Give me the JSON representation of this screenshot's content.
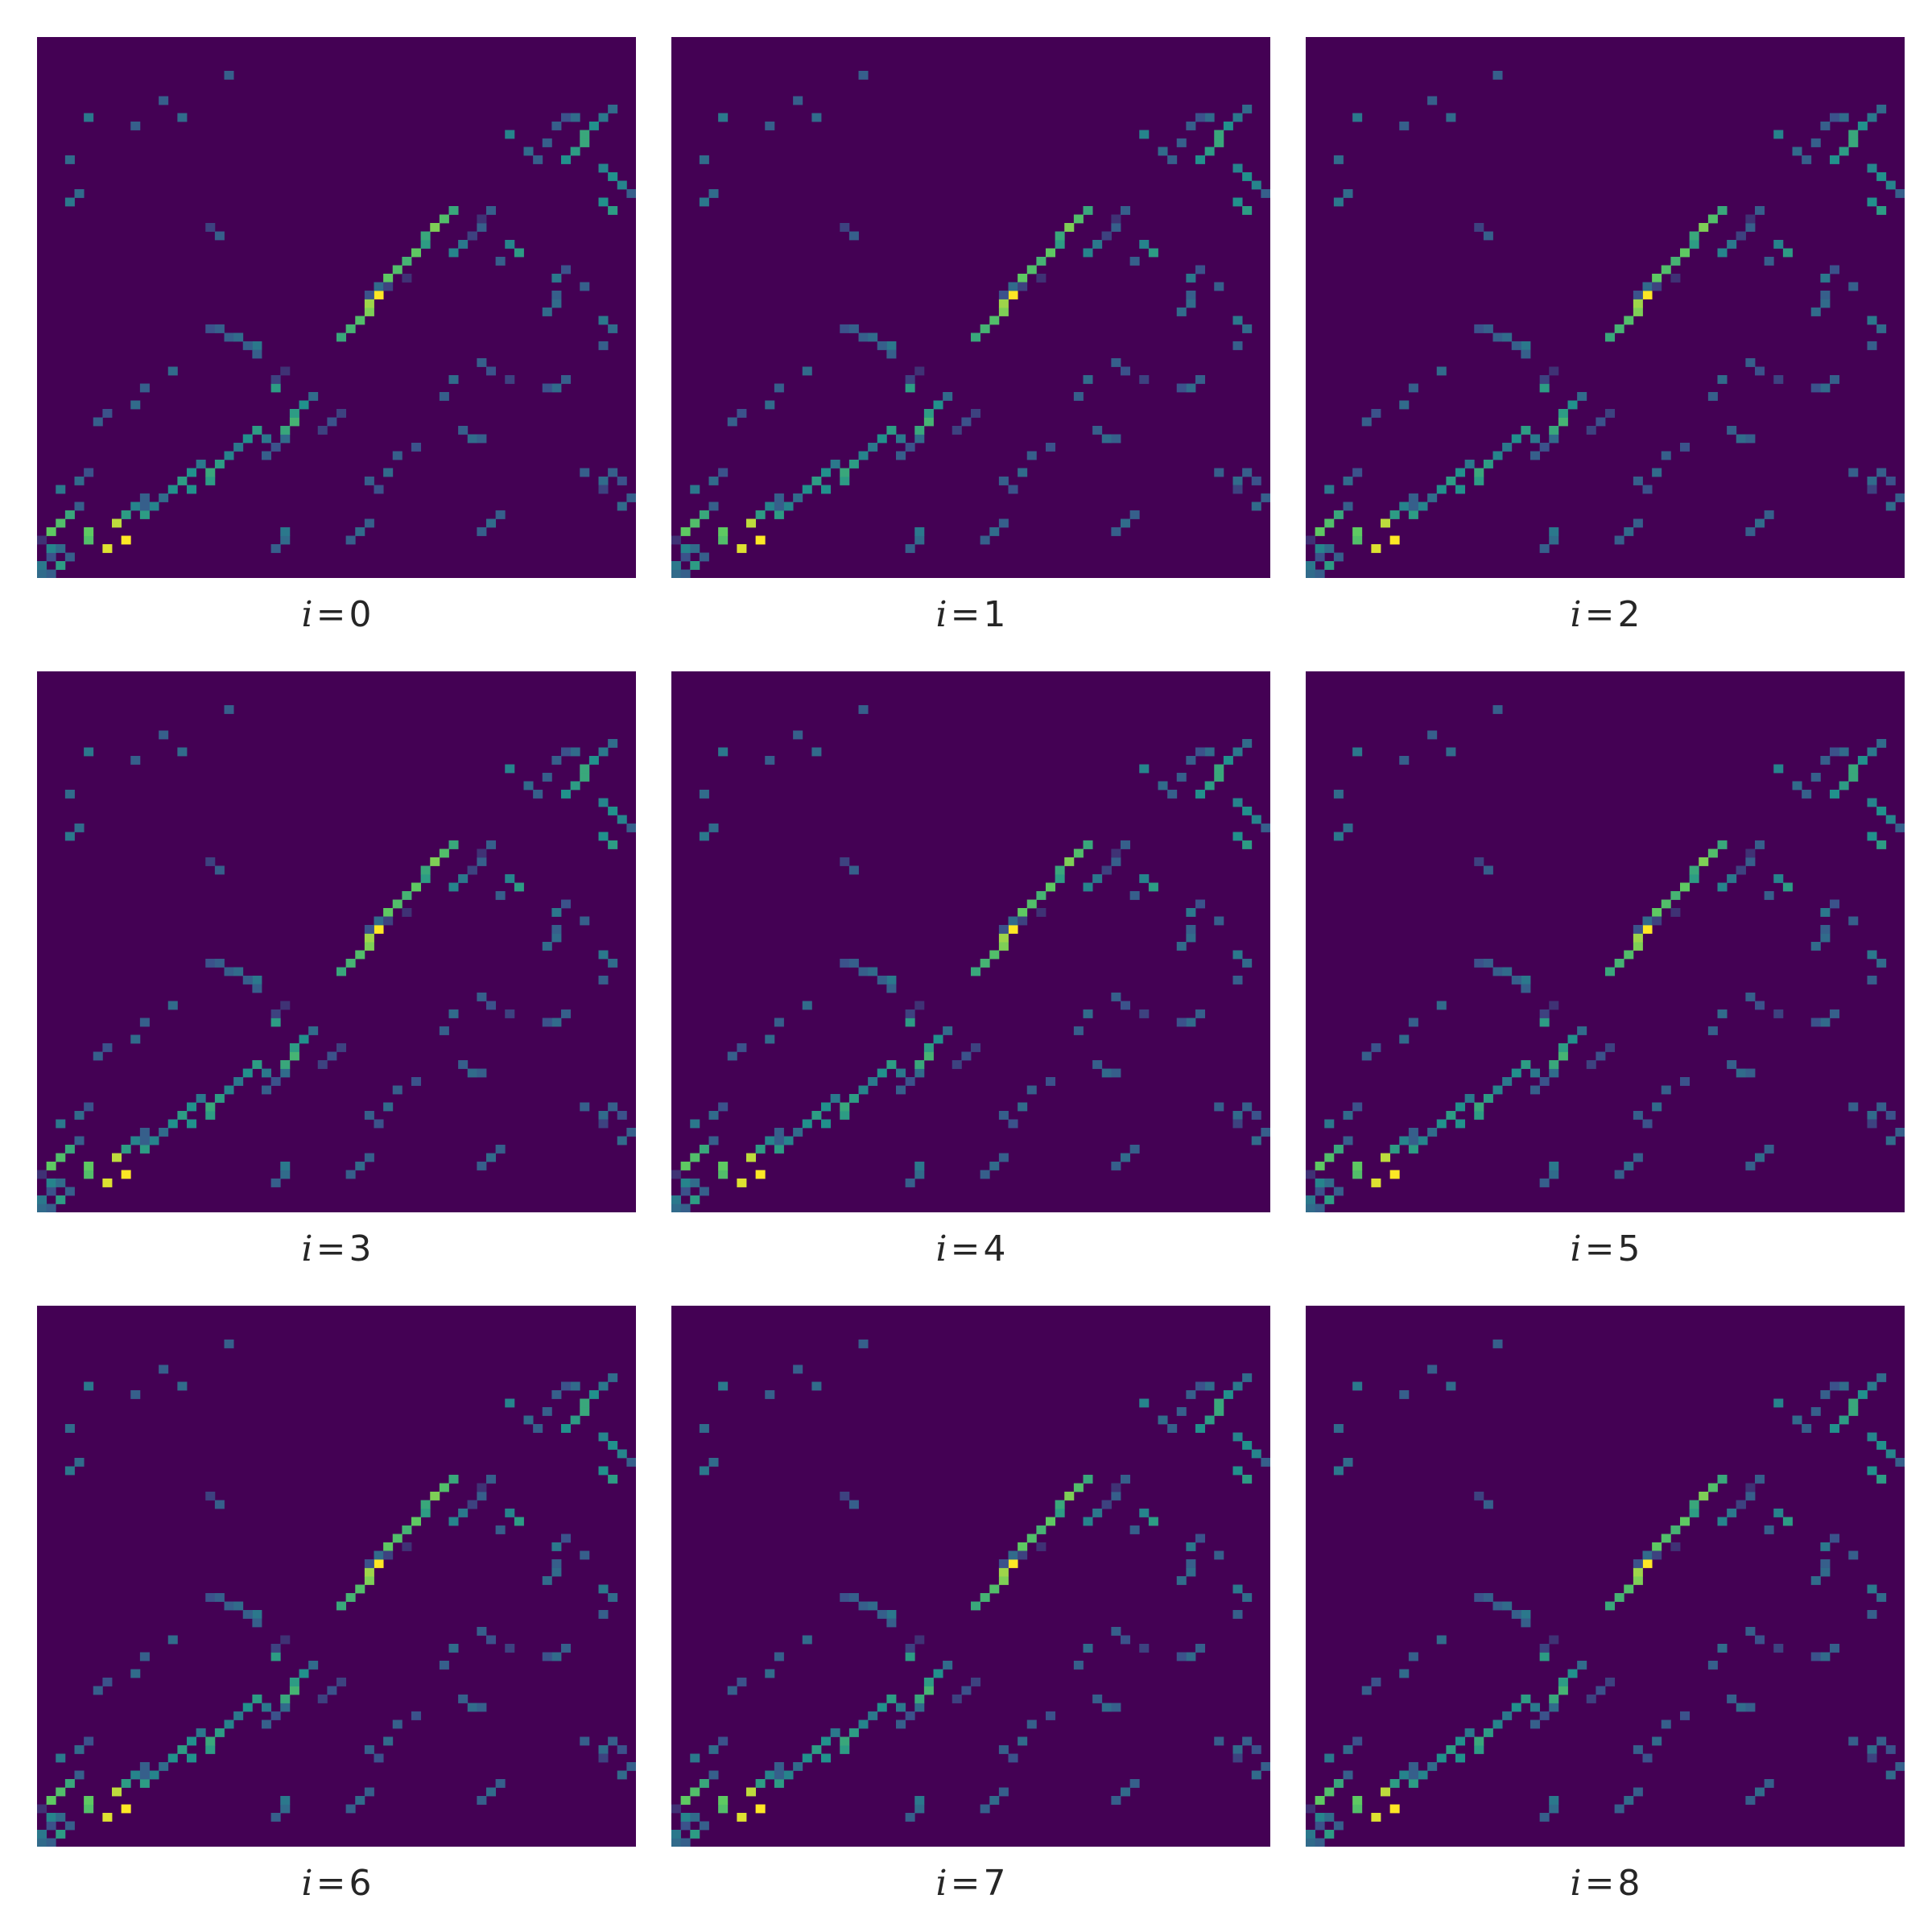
{
  "chart_data": {
    "type": "heatmap",
    "layout": "3x3 grid of heatmap panels",
    "colormap": "viridis",
    "color_range": [
      0,
      1
    ],
    "grid": 64,
    "panels_share_base_pattern": true,
    "caption_variable": "i",
    "caption_equals": "=",
    "panels": [
      {
        "i": "0"
      },
      {
        "i": "1"
      },
      {
        "i": "2"
      },
      {
        "i": "3"
      },
      {
        "i": "4"
      },
      {
        "i": "5"
      },
      {
        "i": "6"
      },
      {
        "i": "7"
      },
      {
        "i": "8"
      }
    ],
    "base_cells": [
      [
        0,
        0,
        0.35
      ],
      [
        0,
        1,
        0.3
      ],
      [
        1,
        0,
        0.4
      ],
      [
        1,
        2,
        0.55
      ],
      [
        2,
        1,
        0.25
      ],
      [
        2,
        3,
        0.3
      ],
      [
        3,
        1,
        0.45
      ],
      [
        3,
        2,
        0.35
      ],
      [
        4,
        0,
        0.15
      ],
      [
        4,
        5,
        0.7
      ],
      [
        5,
        1,
        0.75
      ],
      [
        5,
        5,
        0.75
      ],
      [
        6,
        2,
        0.7
      ],
      [
        6,
        8,
        0.9
      ],
      [
        7,
        3,
        0.6
      ],
      [
        7,
        9,
        0.55
      ],
      [
        8,
        4,
        0.3
      ],
      [
        8,
        10,
        0.45
      ],
      [
        9,
        11,
        0.3
      ],
      [
        10,
        2,
        0.4
      ],
      [
        11,
        4,
        0.35
      ],
      [
        12,
        5,
        0.25
      ],
      [
        3,
        7,
        0.95
      ],
      [
        4,
        9,
        1.0
      ],
      [
        7,
        11,
        0.55
      ],
      [
        8,
        12,
        0.45
      ],
      [
        8,
        11,
        0.3
      ],
      [
        9,
        13,
        0.35
      ],
      [
        10,
        14,
        0.5
      ],
      [
        11,
        15,
        0.55
      ],
      [
        12,
        16,
        0.5
      ],
      [
        13,
        17,
        0.4
      ],
      [
        10,
        16,
        0.5
      ],
      [
        11,
        18,
        0.55
      ],
      [
        12,
        18,
        0.6
      ],
      [
        13,
        19,
        0.55
      ],
      [
        14,
        20,
        0.45
      ],
      [
        15,
        21,
        0.4
      ],
      [
        16,
        22,
        0.5
      ],
      [
        17,
        23,
        0.55
      ],
      [
        14,
        24,
        0.3
      ],
      [
        15,
        25,
        0.25
      ],
      [
        16,
        26,
        0.35
      ],
      [
        17,
        26,
        0.6
      ],
      [
        18,
        27,
        0.65
      ],
      [
        19,
        27,
        0.55
      ],
      [
        20,
        28,
        0.5
      ],
      [
        21,
        29,
        0.35
      ],
      [
        17,
        30,
        0.2
      ],
      [
        18,
        31,
        0.25
      ],
      [
        19,
        32,
        0.2
      ],
      [
        16,
        24,
        0.4
      ],
      [
        22,
        25,
        0.55
      ],
      [
        23,
        25,
        0.2
      ],
      [
        24,
        26,
        0.15
      ],
      [
        28,
        32,
        0.6
      ],
      [
        29,
        33,
        0.65
      ],
      [
        30,
        34,
        0.7
      ],
      [
        31,
        35,
        0.8
      ],
      [
        32,
        35,
        0.85
      ],
      [
        33,
        36,
        1.0
      ],
      [
        34,
        36,
        0.35
      ],
      [
        35,
        37,
        0.75
      ],
      [
        36,
        38,
        0.7
      ],
      [
        37,
        39,
        0.65
      ],
      [
        38,
        40,
        0.75
      ],
      [
        39,
        41,
        0.55
      ],
      [
        40,
        41,
        0.6
      ],
      [
        41,
        42,
        0.8
      ],
      [
        42,
        43,
        0.7
      ],
      [
        43,
        44,
        0.6
      ],
      [
        38,
        44,
        0.45
      ],
      [
        39,
        45,
        0.4
      ],
      [
        40,
        46,
        0.35
      ],
      [
        41,
        47,
        0.3
      ],
      [
        33,
        35,
        0.25
      ],
      [
        34,
        37,
        0.2
      ],
      [
        35,
        39,
        0.15
      ],
      [
        38,
        51,
        0.55
      ],
      [
        39,
        50,
        0.45
      ],
      [
        37,
        49,
        0.3
      ],
      [
        49,
        56,
        0.5
      ],
      [
        50,
        57,
        0.55
      ],
      [
        51,
        58,
        0.6
      ],
      [
        52,
        58,
        0.6
      ],
      [
        53,
        59,
        0.5
      ],
      [
        54,
        60,
        0.4
      ],
      [
        55,
        61,
        0.35
      ],
      [
        49,
        53,
        0.3
      ],
      [
        50,
        52,
        0.35
      ],
      [
        51,
        54,
        0.3
      ],
      [
        48,
        60,
        0.45
      ],
      [
        47,
        61,
        0.5
      ],
      [
        46,
        62,
        0.45
      ],
      [
        45,
        63,
        0.3
      ],
      [
        54,
        57,
        0.35
      ],
      [
        53,
        55,
        0.3
      ],
      [
        54,
        56,
        0.25
      ],
      [
        43,
        61,
        0.55
      ],
      [
        44,
        60,
        0.5
      ],
      [
        52,
        50,
        0.45
      ],
      [
        44,
        3,
        0.4
      ],
      [
        45,
        4,
        0.35
      ],
      [
        49,
        3,
        0.35
      ],
      [
        54,
        5,
        0.4
      ],
      [
        53,
        10,
        0.3
      ],
      [
        56,
        13,
        0.3
      ],
      [
        54,
        15,
        0.35
      ],
      [
        59,
        20,
        0.3
      ],
      [
        40,
        46,
        0.2
      ],
      [
        42,
        47,
        0.15
      ],
      [
        43,
        48,
        0.3
      ],
      [
        40,
        19,
        0.3
      ],
      [
        41,
        18,
        0.2
      ],
      [
        20,
        10,
        0.35
      ],
      [
        18,
        6,
        0.3
      ],
      [
        19,
        7,
        0.25
      ],
      [
        22,
        11,
        0.3
      ],
      [
        24,
        14,
        0.35
      ],
      [
        29,
        18,
        0.25
      ],
      [
        29,
        19,
        0.3
      ],
      [
        27,
        23,
        0.4
      ],
      [
        26,
        23,
        0.3
      ],
      [
        31,
        54,
        0.35
      ],
      [
        32,
        55,
        0.35
      ],
      [
        33,
        55,
        0.3
      ],
      [
        35,
        55,
        0.4
      ],
      [
        36,
        56,
        0.25
      ],
      [
        34,
        58,
        0.3
      ],
      [
        21,
        43,
        0.3
      ],
      [
        23,
        44,
        0.35
      ],
      [
        23,
        50,
        0.2
      ],
      [
        24,
        48,
        0.25
      ],
      [
        25,
        47,
        0.3
      ],
      [
        22,
        55,
        0.35
      ],
      [
        23,
        56,
        0.3
      ],
      [
        22,
        54,
        0.25
      ],
      [
        27,
        60,
        0.3
      ],
      [
        29,
        61,
        0.35
      ],
      [
        30,
        60,
        0.4
      ],
      [
        15,
        40,
        0.25
      ],
      [
        17,
        45,
        0.3
      ],
      [
        16,
        46,
        0.35
      ],
      [
        16,
        47,
        0.3
      ],
      [
        12,
        58,
        0.3
      ],
      [
        11,
        60,
        0.35
      ],
      [
        12,
        61,
        0.3
      ],
      [
        11,
        62,
        0.25
      ],
      [
        10,
        60,
        0.2
      ],
      [
        8,
        62,
        0.35
      ],
      [
        9,
        63,
        0.3
      ],
      [
        5,
        47,
        0.3
      ],
      [
        6,
        48,
        0.35
      ],
      [
        7,
        49,
        0.3
      ],
      [
        4,
        33,
        0.3
      ],
      [
        5,
        34,
        0.35
      ],
      [
        6,
        35,
        0.3
      ],
      [
        10,
        36,
        0.25
      ],
      [
        11,
        35,
        0.3
      ],
      [
        12,
        37,
        0.35
      ],
      [
        14,
        38,
        0.3
      ],
      [
        3,
        25,
        0.3
      ],
      [
        4,
        26,
        0.35
      ],
      [
        5,
        26,
        0.4
      ],
      [
        28,
        20,
        0.3
      ],
      [
        28,
        21,
        0.35
      ],
      [
        27,
        22,
        0.3
      ]
    ]
  }
}
